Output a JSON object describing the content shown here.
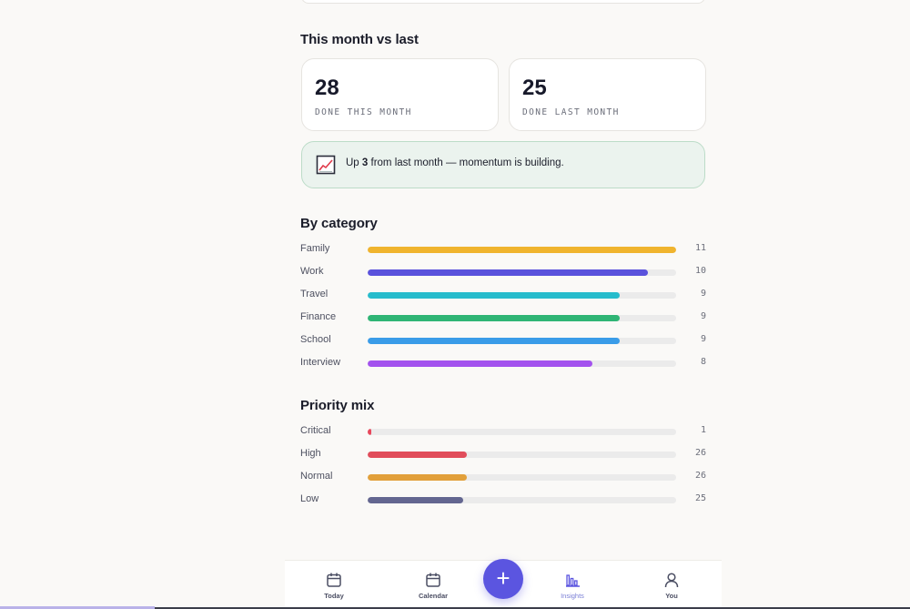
{
  "comparison": {
    "title": "This month vs last",
    "this_month": {
      "value": "28",
      "label": "DONE THIS MONTH"
    },
    "last_month": {
      "value": "25",
      "label": "DONE LAST MONTH"
    }
  },
  "momentum": {
    "icon": "trend-chart-icon",
    "prefix": "Up ",
    "delta": "3",
    "suffix": " from last month — momentum is building."
  },
  "categories": {
    "title": "By category",
    "max": 11,
    "items": [
      {
        "label": "Family",
        "count": 11,
        "color": "#f0b42e"
      },
      {
        "label": "Work",
        "count": 10,
        "color": "#5a52dc"
      },
      {
        "label": "Travel",
        "count": 9,
        "color": "#26bccc"
      },
      {
        "label": "Finance",
        "count": 9,
        "color": "#2fb575"
      },
      {
        "label": "School",
        "count": 9,
        "color": "#3a9ce8"
      },
      {
        "label": "Interview",
        "count": 8,
        "color": "#a352ee"
      }
    ]
  },
  "priority": {
    "title": "Priority mix",
    "max": 81,
    "items": [
      {
        "label": "Critical",
        "count": 1,
        "color": "#e8485c"
      },
      {
        "label": "High",
        "count": 26,
        "color": "#e14d5b"
      },
      {
        "label": "Normal",
        "count": 26,
        "color": "#e2a03a"
      },
      {
        "label": "Low",
        "count": 25,
        "color": "#636690"
      }
    ]
  },
  "nav": {
    "today": "Today",
    "calendar": "Calendar",
    "add": "+",
    "insights": "Insights",
    "you": "You",
    "active": "insights"
  },
  "colors": {
    "accent": "#5b55e0"
  }
}
